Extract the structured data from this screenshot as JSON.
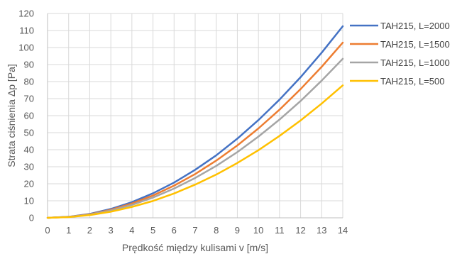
{
  "chart_data": {
    "type": "line",
    "title": "",
    "xlabel": "Prędkość między kulisami v [m/s]",
    "ylabel": "Strata ciśnienia Δp [Pa]",
    "xlim": [
      0,
      14
    ],
    "ylim": [
      0,
      120
    ],
    "x_ticks": [
      0,
      1,
      2,
      3,
      4,
      5,
      6,
      7,
      8,
      9,
      10,
      11,
      12,
      13,
      14
    ],
    "y_ticks": [
      0,
      10,
      20,
      30,
      40,
      50,
      60,
      70,
      80,
      90,
      100,
      110,
      120
    ],
    "grid": true,
    "legend_position": "right",
    "x": [
      0,
      1,
      2,
      3,
      4,
      5,
      6,
      7,
      8,
      9,
      10,
      11,
      12,
      13,
      14
    ],
    "series": [
      {
        "name": "TAH215, L=2000",
        "color": "#4472C4",
        "values": [
          0,
          0.6,
          2.3,
          5.2,
          9.2,
          14.4,
          20.7,
          28.2,
          36.7,
          46.5,
          57.4,
          69.4,
          82.6,
          97.0,
          112.5
        ]
      },
      {
        "name": "TAH215, L=1500",
        "color": "#ED7D31",
        "values": [
          0,
          0.5,
          2.1,
          4.7,
          8.4,
          13.1,
          18.9,
          25.7,
          33.6,
          42.5,
          52.5,
          63.5,
          75.6,
          88.7,
          102.9
        ]
      },
      {
        "name": "TAH215, L=1000",
        "color": "#A5A5A5",
        "values": [
          0,
          0.5,
          1.9,
          4.3,
          7.6,
          11.9,
          17.2,
          23.4,
          30.5,
          38.6,
          47.7,
          57.7,
          68.6,
          80.6,
          93.4
        ]
      },
      {
        "name": "TAH215, L=500",
        "color": "#FFC000",
        "values": [
          0,
          0.4,
          1.6,
          3.6,
          6.4,
          9.9,
          14.3,
          19.5,
          25.4,
          32.2,
          39.7,
          48.1,
          57.2,
          67.1,
          77.8
        ]
      }
    ]
  }
}
